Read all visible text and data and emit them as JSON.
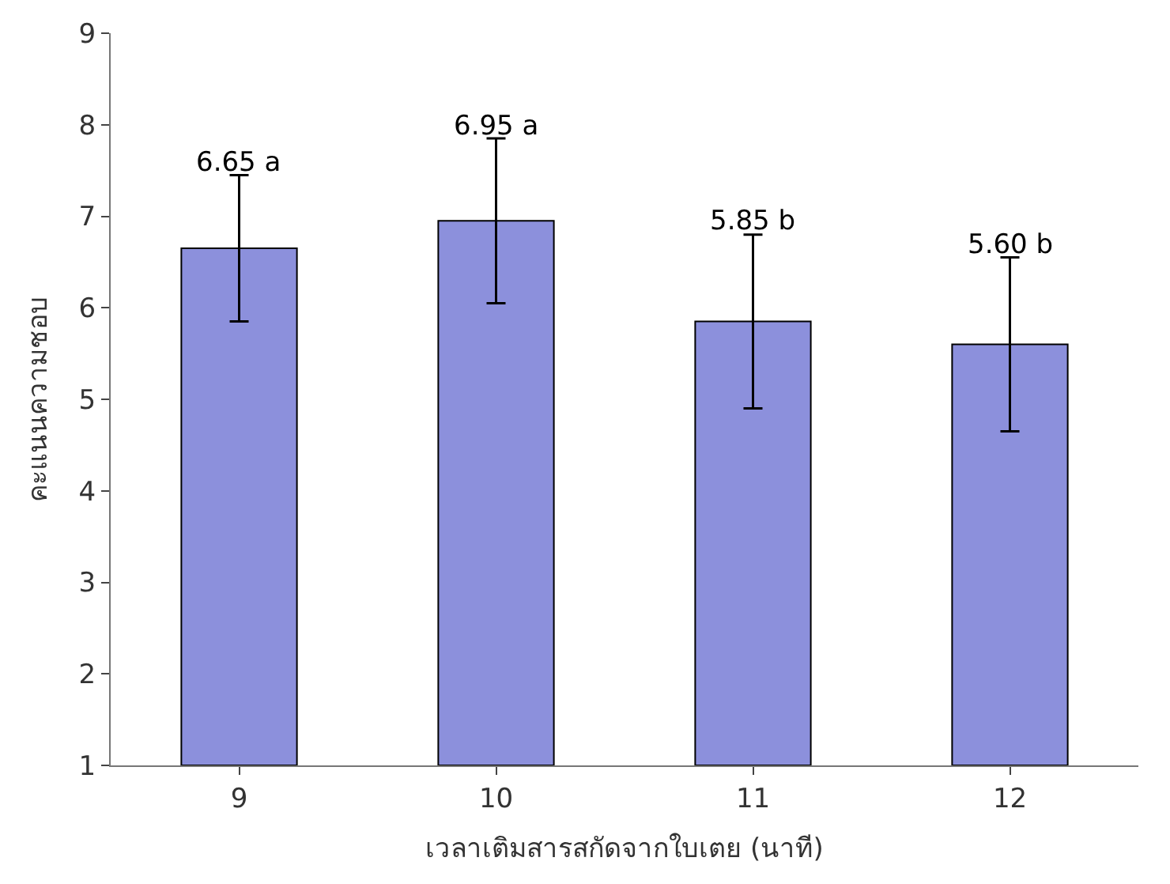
{
  "chart_data": {
    "type": "bar",
    "xlabel": "เวลาเติมสารสกัดจากใบเตย (นาที)",
    "ylabel": "คะแนนความชอบ",
    "categories": [
      "9",
      "10",
      "11",
      "12"
    ],
    "values": [
      6.65,
      6.95,
      5.85,
      5.6
    ],
    "value_labels": [
      "6.65 a",
      "6.95 a",
      "5.85 b",
      "5.60 b"
    ],
    "errors": [
      0.8,
      0.9,
      0.95,
      0.95
    ],
    "color": "#8c90dc",
    "ylim": [
      1,
      9
    ],
    "yticks": [
      1,
      2,
      3,
      4,
      5,
      6,
      7,
      8,
      9
    ],
    "legend": false
  }
}
